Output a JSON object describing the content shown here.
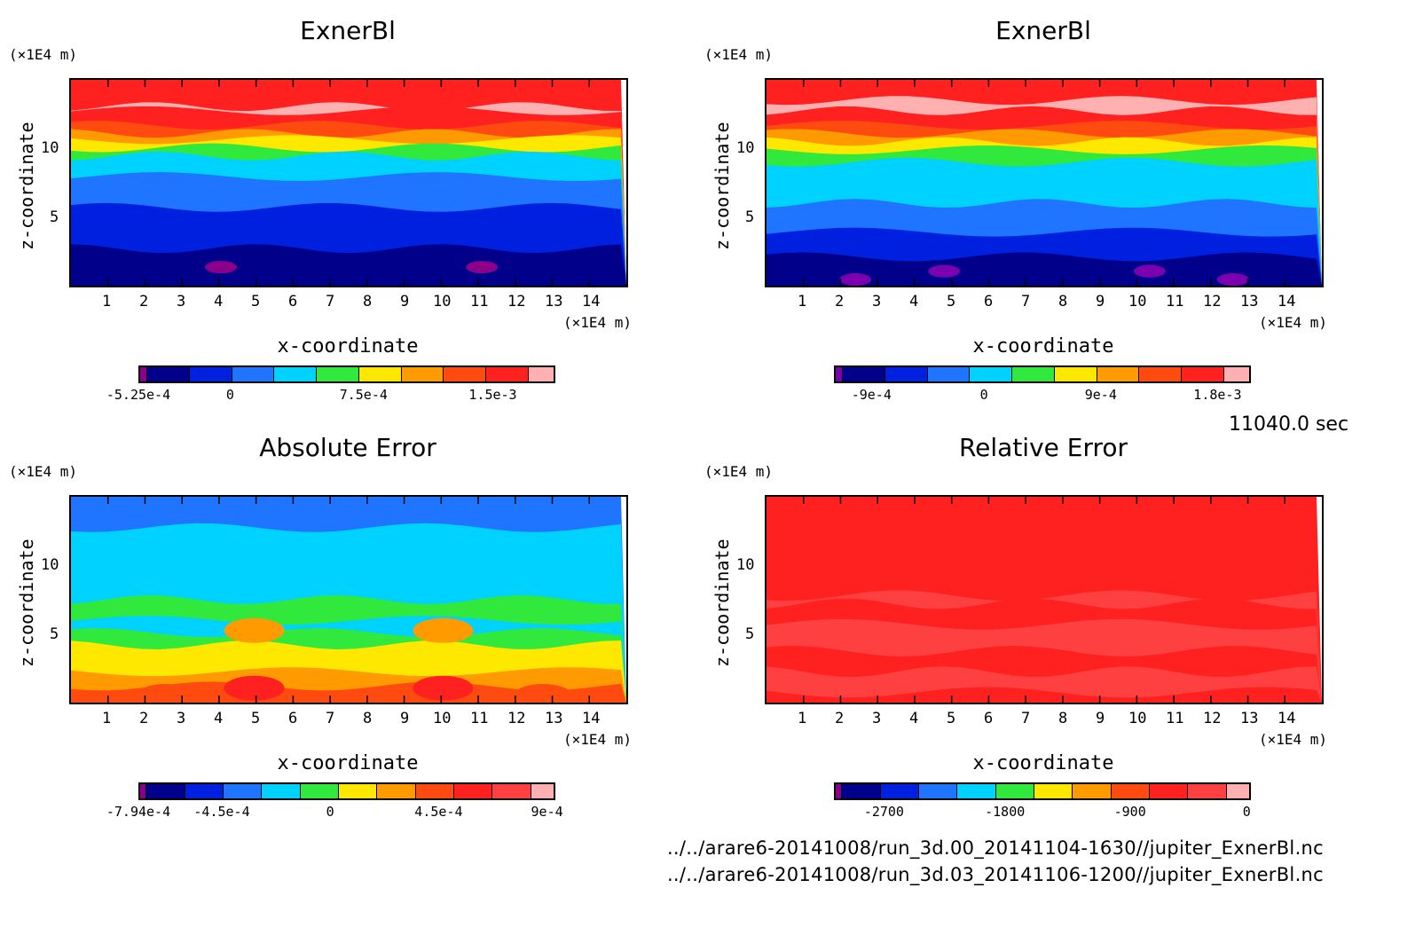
{
  "time_label": "11040.0 sec",
  "files": [
    "../../arare6-20141008/run_3d.00_20141104-1630//jupiter_ExnerBl.nc",
    "../../arare6-20141008/run_3d.03_20141106-1200//jupiter_ExnerBl.nc"
  ],
  "axis_unit": "(×1E4 m)",
  "chart_data": [
    {
      "type": "heatmap",
      "title": "ExnerBl",
      "xlabel": "x-coordinate",
      "ylabel": "z-coordinate",
      "x_unit": "(×1E4 m)",
      "y_unit": "(×1E4 m)",
      "x_ticks": [
        "1",
        "2",
        "3",
        "4",
        "5",
        "6",
        "7",
        "8",
        "9",
        "10",
        "11",
        "12",
        "13",
        "14"
      ],
      "y_ticks": [
        "5",
        "10"
      ],
      "xlim": [
        0,
        15
      ],
      "ylim": [
        0,
        15
      ],
      "colorbar_ticks": [
        "-5.25e-4",
        "0",
        "7.5e-4",
        "1.5e-3"
      ],
      "colors": [
        "#8b008b",
        "#00008b",
        "#0020e0",
        "#1f75ff",
        "#00d2ff",
        "#31e83c",
        "#ffe800",
        "#ff9a00",
        "#ff4a10",
        "#ff2020",
        "#ffb0b0"
      ]
    },
    {
      "type": "heatmap",
      "title": "ExnerBl",
      "xlabel": "x-coordinate",
      "ylabel": "z-coordinate",
      "x_unit": "(×1E4 m)",
      "y_unit": "(×1E4 m)",
      "x_ticks": [
        "1",
        "2",
        "3",
        "4",
        "5",
        "6",
        "7",
        "8",
        "9",
        "10",
        "11",
        "12",
        "13",
        "14"
      ],
      "y_ticks": [
        "5",
        "10"
      ],
      "xlim": [
        0,
        15
      ],
      "ylim": [
        0,
        15
      ],
      "colorbar_ticks": [
        "-9e-4",
        "0",
        "9e-4",
        "1.8e-3"
      ],
      "colors": [
        "#7a00b0",
        "#00008b",
        "#0020e0",
        "#1f75ff",
        "#00d2ff",
        "#31e83c",
        "#ffe800",
        "#ff9a00",
        "#ff4a10",
        "#ff2020",
        "#ffb0b0"
      ]
    },
    {
      "type": "heatmap",
      "title": "Absolute Error",
      "xlabel": "x-coordinate",
      "ylabel": "z-coordinate",
      "x_unit": "(×1E4 m)",
      "y_unit": "(×1E4 m)",
      "x_ticks": [
        "1",
        "2",
        "3",
        "4",
        "5",
        "6",
        "7",
        "8",
        "9",
        "10",
        "11",
        "12",
        "13",
        "14"
      ],
      "y_ticks": [
        "5",
        "10"
      ],
      "xlim": [
        0,
        15
      ],
      "ylim": [
        0,
        15
      ],
      "colorbar_ticks": [
        "-7.94e-4",
        "-4.5e-4",
        "0",
        "4.5e-4",
        "9e-4"
      ],
      "colors": [
        "#8b008b",
        "#00008b",
        "#0020e0",
        "#1f75ff",
        "#00d2ff",
        "#31e83c",
        "#ffe800",
        "#ff9a00",
        "#ff4a10",
        "#ff2020",
        "#ff4040",
        "#ffb0b0"
      ]
    },
    {
      "type": "heatmap",
      "title": "Relative Error",
      "xlabel": "x-coordinate",
      "ylabel": "z-coordinate",
      "x_unit": "(×1E4 m)",
      "y_unit": "(×1E4 m)",
      "x_ticks": [
        "1",
        "2",
        "3",
        "4",
        "5",
        "6",
        "7",
        "8",
        "9",
        "10",
        "11",
        "12",
        "13",
        "14"
      ],
      "y_ticks": [
        "5",
        "10"
      ],
      "xlim": [
        0,
        15
      ],
      "ylim": [
        0,
        15
      ],
      "colorbar_ticks": [
        "-2700",
        "-1800",
        "-900",
        "0"
      ],
      "colors": [
        "#8b008b",
        "#00008b",
        "#0020e0",
        "#1f75ff",
        "#00d2ff",
        "#31e83c",
        "#ffe800",
        "#ff9a00",
        "#ff4a10",
        "#ff2020",
        "#ff4040",
        "#ffb0b0"
      ]
    }
  ]
}
